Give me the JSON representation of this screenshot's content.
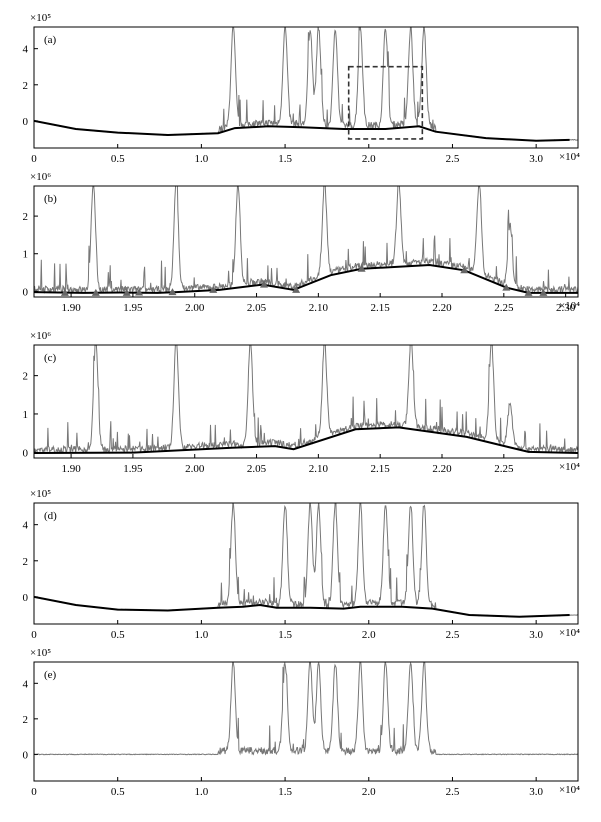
{
  "chart_data": [
    {
      "type": "line",
      "panel_label": "(a)",
      "y_exponent": "×10⁵",
      "x_exponent": "×10⁴",
      "xlim": [
        0,
        32500
      ],
      "ylim": [
        -150000,
        520000
      ],
      "x_ticks": [
        0,
        5000,
        10000,
        15000,
        20000,
        25000,
        30000
      ],
      "x_tick_labels": [
        "0",
        "0.5",
        "1.0",
        "1.5",
        "2.0",
        "2.5",
        "3.0"
      ],
      "y_ticks": [
        0,
        200000,
        400000
      ],
      "y_tick_labels": [
        "0",
        "2",
        "4"
      ],
      "baseline": [
        [
          0,
          0
        ],
        [
          2500,
          -45000
        ],
        [
          5000,
          -65000
        ],
        [
          8000,
          -78000
        ],
        [
          11000,
          -68000
        ],
        [
          12000,
          -40000
        ],
        [
          14000,
          -30000
        ],
        [
          16000,
          -35000
        ],
        [
          18500,
          -45000
        ],
        [
          21000,
          -45000
        ],
        [
          23000,
          -30000
        ],
        [
          24000,
          -60000
        ],
        [
          27000,
          -95000
        ],
        [
          30000,
          -110000
        ],
        [
          32000,
          -105000
        ]
      ],
      "raw_segments": [
        [
          11000,
          24000
        ]
      ],
      "peaks": [
        [
          11900,
          500000
        ],
        [
          15000,
          500000
        ],
        [
          16500,
          500000
        ],
        [
          17000,
          500000
        ],
        [
          18000,
          500000
        ],
        [
          19500,
          500000
        ],
        [
          21000,
          500000
        ],
        [
          22500,
          500000
        ],
        [
          23300,
          500000
        ]
      ],
      "dashed_box": {
        "x": [
          18800,
          23200
        ],
        "y": [
          -100000,
          300000
        ]
      }
    },
    {
      "type": "line",
      "panel_label": "(b)",
      "y_exponent": "×10⁶",
      "x_exponent": "×10⁴",
      "xlim": [
        18700,
        23100
      ],
      "ylim": [
        -150000,
        2800000
      ],
      "x_ticks": [
        19000,
        19500,
        20000,
        20500,
        21000,
        21500,
        22000,
        22500,
        23000
      ],
      "x_tick_labels": [
        "1.90",
        "1.95",
        "2.00",
        "2.05",
        "2.10",
        "2.15",
        "2.20",
        "2.25",
        "2.30"
      ],
      "y_ticks": [
        0,
        1000000,
        2000000
      ],
      "y_tick_labels": [
        "0",
        "1",
        "2"
      ],
      "baseline": [
        [
          18700,
          -20000
        ],
        [
          19100,
          -40000
        ],
        [
          19400,
          -30000
        ],
        [
          19700,
          -40000
        ],
        [
          19850,
          -20000
        ],
        [
          20200,
          40000
        ],
        [
          20550,
          180000
        ],
        [
          20800,
          40000
        ],
        [
          21100,
          430000
        ],
        [
          21350,
          600000
        ],
        [
          21900,
          700000
        ],
        [
          22180,
          560000
        ],
        [
          22520,
          100000
        ],
        [
          22700,
          -40000
        ],
        [
          22850,
          -40000
        ],
        [
          23100,
          -40000
        ]
      ],
      "markers": [
        [
          18950,
          -40000
        ],
        [
          19200,
          -40000
        ],
        [
          19450,
          -40000
        ],
        [
          19550,
          -30000
        ],
        [
          19820,
          -20000
        ],
        [
          20150,
          40000
        ],
        [
          20560,
          180000
        ],
        [
          20820,
          40000
        ],
        [
          21350,
          600000
        ],
        [
          22180,
          560000
        ],
        [
          22520,
          100000
        ],
        [
          22700,
          -40000
        ],
        [
          22820,
          -40000
        ]
      ],
      "peaks": [
        [
          19180,
          2800000
        ],
        [
          19850,
          2800000
        ],
        [
          20350,
          2800000
        ],
        [
          21050,
          2800000
        ],
        [
          21650,
          2800000
        ],
        [
          22300,
          2800000
        ],
        [
          22550,
          1700000
        ]
      ]
    },
    {
      "type": "line",
      "panel_label": "(c)",
      "y_exponent": "×10⁶",
      "x_exponent": "×10⁴",
      "xlim": [
        18700,
        23100
      ],
      "ylim": [
        -150000,
        2800000
      ],
      "x_ticks": [
        19000,
        19500,
        20000,
        20500,
        21000,
        21500,
        22000,
        22500
      ],
      "x_tick_labels": [
        "1.90",
        "1.95",
        "2.00",
        "2.05",
        "2.10",
        "2.15",
        "2.20",
        "2.25"
      ],
      "y_ticks": [
        0,
        1000000,
        2000000
      ],
      "y_tick_labels": [
        "0",
        "1",
        "2"
      ],
      "baseline": [
        [
          18700,
          -20000
        ],
        [
          19500,
          -10000
        ],
        [
          20300,
          120000
        ],
        [
          20650,
          160000
        ],
        [
          20800,
          80000
        ],
        [
          21300,
          600000
        ],
        [
          21650,
          650000
        ],
        [
          22200,
          400000
        ],
        [
          22700,
          10000
        ],
        [
          23100,
          -20000
        ]
      ],
      "peaks": [
        [
          19200,
          2800000
        ],
        [
          19850,
          2800000
        ],
        [
          20450,
          2800000
        ],
        [
          21050,
          2800000
        ],
        [
          21750,
          2800000
        ],
        [
          22400,
          2800000
        ],
        [
          22550,
          1200000
        ]
      ]
    },
    {
      "type": "line",
      "panel_label": "(d)",
      "y_exponent": "×10⁵",
      "x_exponent": "×10⁴",
      "xlim": [
        0,
        32500
      ],
      "ylim": [
        -150000,
        520000
      ],
      "x_ticks": [
        0,
        5000,
        10000,
        15000,
        20000,
        25000,
        30000
      ],
      "x_tick_labels": [
        "0",
        "0.5",
        "1.0",
        "1.5",
        "2.0",
        "2.5",
        "3.0"
      ],
      "y_ticks": [
        0,
        200000,
        400000
      ],
      "y_tick_labels": [
        "0",
        "2",
        "4"
      ],
      "baseline": [
        [
          0,
          0
        ],
        [
          2500,
          -45000
        ],
        [
          5000,
          -70000
        ],
        [
          8000,
          -75000
        ],
        [
          11000,
          -60000
        ],
        [
          12500,
          -55000
        ],
        [
          13500,
          -45000
        ],
        [
          14500,
          -60000
        ],
        [
          16500,
          -60000
        ],
        [
          18500,
          -65000
        ],
        [
          19500,
          -55000
        ],
        [
          22000,
          -55000
        ],
        [
          23800,
          -65000
        ],
        [
          26000,
          -100000
        ],
        [
          29000,
          -110000
        ],
        [
          32000,
          -100000
        ]
      ],
      "raw_segments": [
        [
          11000,
          24000
        ]
      ],
      "peaks": [
        [
          11900,
          500000
        ],
        [
          15000,
          500000
        ],
        [
          16500,
          500000
        ],
        [
          17000,
          500000
        ],
        [
          18000,
          500000
        ],
        [
          19500,
          500000
        ],
        [
          21000,
          500000
        ],
        [
          22500,
          500000
        ],
        [
          23300,
          500000
        ]
      ]
    },
    {
      "type": "line",
      "panel_label": "(e)",
      "y_exponent": "×10⁵",
      "x_exponent": "×10⁴",
      "xlim": [
        0,
        32500
      ],
      "ylim": [
        -150000,
        520000
      ],
      "x_ticks": [
        0,
        5000,
        10000,
        15000,
        20000,
        25000,
        30000
      ],
      "x_tick_labels": [
        "0",
        "0.5",
        "1.0",
        "1.5",
        "2.0",
        "2.5",
        "3.0"
      ],
      "y_ticks": [
        0,
        200000,
        400000
      ],
      "y_tick_labels": [
        "0",
        "2",
        "4"
      ],
      "baseline_flat": 0,
      "raw_segments": [
        [
          11000,
          24000
        ]
      ],
      "peaks": [
        [
          11900,
          500000
        ],
        [
          15000,
          500000
        ],
        [
          16500,
          500000
        ],
        [
          17000,
          500000
        ],
        [
          18000,
          500000
        ],
        [
          19500,
          500000
        ],
        [
          21000,
          500000
        ],
        [
          22500,
          500000
        ],
        [
          23300,
          500000
        ]
      ]
    }
  ]
}
